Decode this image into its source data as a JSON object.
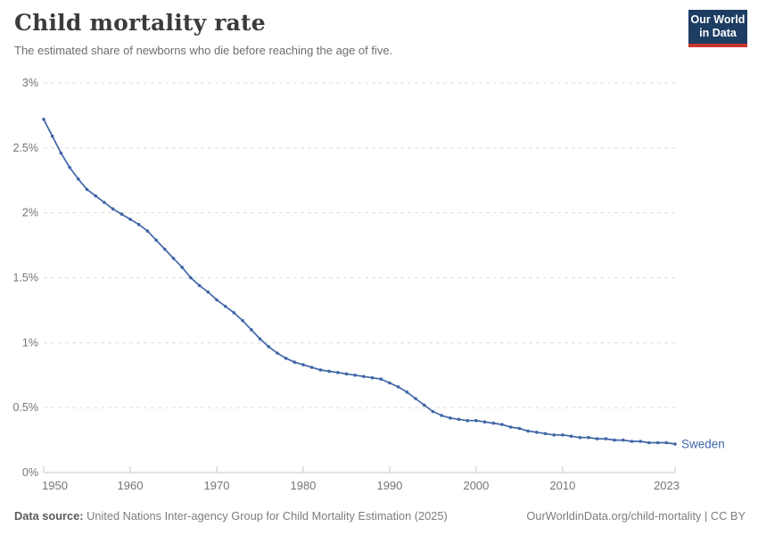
{
  "header": {
    "title": "Child mortality rate",
    "subtitle": "The estimated share of newborns who die before reaching the age of five.",
    "logo": {
      "line1": "Our World",
      "line2": "in Data",
      "bg_color": "#1d3d63",
      "accent_color": "#c9352e"
    }
  },
  "footer": {
    "source_label": "Data source:",
    "source_text": " United Nations Inter-agency Group for Child Mortality Estimation (2025)",
    "link_text": "OurWorldinData.org/child-mortality | CC BY"
  },
  "colors": {
    "line": "#4066a8",
    "axis_text": "#757575",
    "grid": "#dcdcdc",
    "axis_line": "#c8c8c8",
    "title": "#3b3b3b",
    "subtitle": "#6e6e6e"
  },
  "chart_data": {
    "type": "line",
    "title": "Child mortality rate",
    "xlabel": "",
    "ylabel": "",
    "grid": "horizontal-dashed",
    "legend_position": "label-at-line-end",
    "x_axis": {
      "lim": [
        1950,
        2023
      ],
      "ticks": [
        1950,
        1960,
        1970,
        1980,
        1990,
        2000,
        2010,
        2023
      ]
    },
    "y_axis": {
      "lim": [
        0,
        3
      ],
      "unit": "%",
      "ticks": [
        [
          0,
          "0%"
        ],
        [
          0.5,
          "0.5%"
        ],
        [
          1,
          "1%"
        ],
        [
          1.5,
          "1.5%"
        ],
        [
          2,
          "2%"
        ],
        [
          2.5,
          "2.5%"
        ],
        [
          3,
          "3%"
        ]
      ]
    },
    "series": [
      {
        "name": "Sweden",
        "color": "#4066a8",
        "years": [
          1950,
          1951,
          1952,
          1953,
          1954,
          1955,
          1956,
          1957,
          1958,
          1959,
          1960,
          1961,
          1962,
          1963,
          1964,
          1965,
          1966,
          1967,
          1968,
          1969,
          1970,
          1971,
          1972,
          1973,
          1974,
          1975,
          1976,
          1977,
          1978,
          1979,
          1980,
          1981,
          1982,
          1983,
          1984,
          1985,
          1986,
          1987,
          1988,
          1989,
          1990,
          1991,
          1992,
          1993,
          1994,
          1995,
          1996,
          1997,
          1998,
          1999,
          2000,
          2001,
          2002,
          2003,
          2004,
          2005,
          2006,
          2007,
          2008,
          2009,
          2010,
          2011,
          2012,
          2013,
          2014,
          2015,
          2016,
          2017,
          2018,
          2019,
          2020,
          2021,
          2022,
          2023
        ],
        "values": [
          2.72,
          2.59,
          2.46,
          2.35,
          2.26,
          2.18,
          2.13,
          2.08,
          2.03,
          1.99,
          1.95,
          1.91,
          1.86,
          1.79,
          1.72,
          1.65,
          1.58,
          1.5,
          1.44,
          1.39,
          1.33,
          1.28,
          1.23,
          1.17,
          1.1,
          1.03,
          0.97,
          0.92,
          0.88,
          0.85,
          0.83,
          0.81,
          0.79,
          0.78,
          0.77,
          0.76,
          0.75,
          0.74,
          0.73,
          0.72,
          0.69,
          0.66,
          0.62,
          0.57,
          0.52,
          0.47,
          0.44,
          0.42,
          0.41,
          0.4,
          0.4,
          0.39,
          0.38,
          0.37,
          0.35,
          0.34,
          0.32,
          0.31,
          0.3,
          0.29,
          0.29,
          0.28,
          0.27,
          0.27,
          0.26,
          0.26,
          0.25,
          0.25,
          0.24,
          0.24,
          0.23,
          0.23,
          0.23,
          0.22
        ]
      }
    ]
  }
}
